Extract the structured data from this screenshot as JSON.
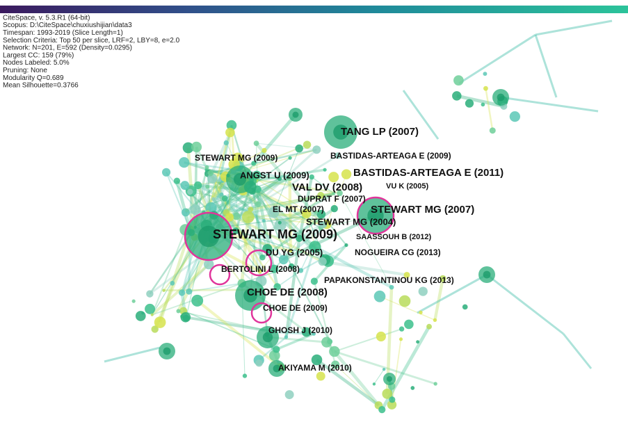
{
  "info": [
    "CiteSpace, v. 5.3.R1 (64-bit)",
    "Scopus: D:\\CiteSpace\\chuxiushijian\\data3",
    "Timespan: 1993-2019 (Slice Length=1)",
    "Selection Criteria: Top 50 per slice, LRF=2, LBY=8, e=2.0",
    "Network: N=201, E=592 (Density=0.0295)",
    "Largest CC: 159 (79%)",
    "Nodes Labeled: 5.0%",
    "Pruning: None",
    "Modularity Q=0.689",
    "Mean Silhouette=0.3766"
  ],
  "nodes": [
    {
      "label": "TANG LP (2007)"
    },
    {
      "label": "STEWART MG (2009)"
    },
    {
      "label": "BASTIDAS-ARTEAGA E (2009)"
    },
    {
      "label": "ANGST U (2009)"
    },
    {
      "label": "BASTIDAS-ARTEAGA E (2011)"
    },
    {
      "label": "VAL DV (2008)"
    },
    {
      "label": "VU K (2005)"
    },
    {
      "label": "DUPRAT F (2007)"
    },
    {
      "label": "EL MT (2007)"
    },
    {
      "label": "STEWART MG (2007)"
    },
    {
      "label": "STEWART MG (2004)"
    },
    {
      "label": "STEWART MG (2009)"
    },
    {
      "label": "SAASSOUH B (2012)"
    },
    {
      "label": "DU YG (2005)"
    },
    {
      "label": "NOGUEIRA CG (2013)"
    },
    {
      "label": "BERTOLINI L (2008)"
    },
    {
      "label": "PAPAKONSTANTINOU KG (2013)"
    },
    {
      "label": "CHOE DE (2008)"
    },
    {
      "label": "CHOE DE (2009)"
    },
    {
      "label": "GHOSH J (2010)"
    },
    {
      "label": "AKIYAMA M (2010)"
    }
  ]
}
